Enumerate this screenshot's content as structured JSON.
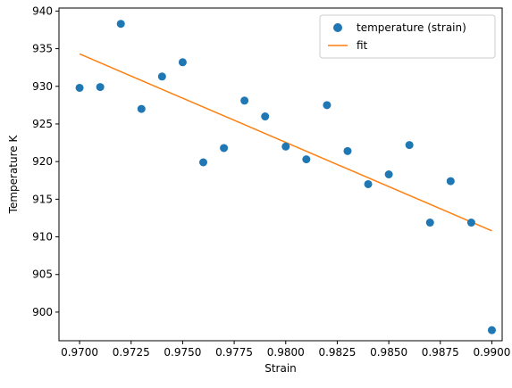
{
  "chart_data": {
    "type": "scatter",
    "title": "",
    "xlabel": "Strain",
    "ylabel": "Temperature K",
    "xlim": [
      0.969,
      0.9905
    ],
    "ylim": [
      896.2,
      940.4
    ],
    "x_ticks": [
      "0.9700",
      "0.9725",
      "0.9750",
      "0.9775",
      "0.9800",
      "0.9825",
      "0.9850",
      "0.9875",
      "0.9900"
    ],
    "x_tick_values": [
      0.97,
      0.9725,
      0.975,
      0.9775,
      0.98,
      0.9825,
      0.985,
      0.9875,
      0.99
    ],
    "y_ticks": [
      "900",
      "905",
      "910",
      "915",
      "920",
      "925",
      "930",
      "935",
      "940"
    ],
    "y_tick_values": [
      900,
      905,
      910,
      915,
      920,
      925,
      930,
      935,
      940
    ],
    "legend_position": "upper-right",
    "grid": false,
    "series": [
      {
        "name": "temperature (strain)",
        "kind": "scatter",
        "color": "#1f77b4",
        "x": [
          0.97,
          0.971,
          0.972,
          0.973,
          0.974,
          0.975,
          0.976,
          0.977,
          0.978,
          0.979,
          0.98,
          0.981,
          0.982,
          0.983,
          0.984,
          0.985,
          0.986,
          0.987,
          0.988,
          0.989,
          0.99
        ],
        "y": [
          929.8,
          929.9,
          938.3,
          927.0,
          931.3,
          933.2,
          919.9,
          921.8,
          928.1,
          926.0,
          922.0,
          920.3,
          927.5,
          921.4,
          917.0,
          918.3,
          922.2,
          911.9,
          917.4,
          911.9,
          897.6
        ]
      },
      {
        "name": "fit",
        "kind": "line",
        "color": "#ff7f0e",
        "x": [
          0.97,
          0.99
        ],
        "y": [
          934.3,
          910.8
        ]
      }
    ]
  }
}
